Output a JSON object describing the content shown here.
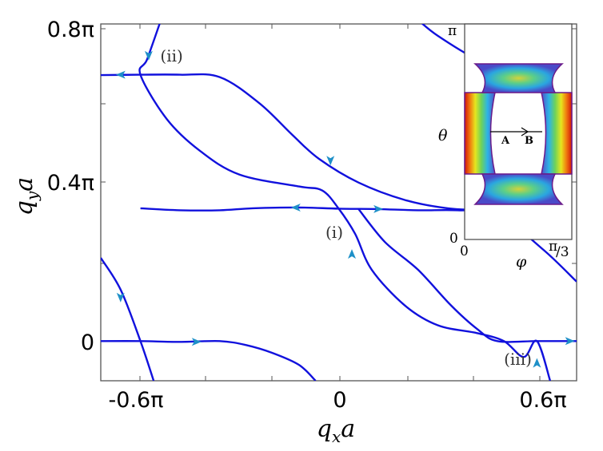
{
  "chart_data": {
    "type": "line",
    "xlabel": "q_x a",
    "ylabel": "q_y a",
    "x_ticks": [
      "-0.6π",
      "0",
      "0.6π"
    ],
    "y_ticks": [
      "0",
      "0.4π",
      "0.8π"
    ],
    "xlim": [
      -0.72,
      0.72
    ],
    "ylim": [
      -0.1,
      0.8
    ],
    "line_color": "#1111dd",
    "arrow_color": "#1e90c8",
    "series": [
      {
        "points": [
          [
            -0.72,
            0.671
          ],
          [
            -0.6,
            0.672
          ],
          [
            -0.48,
            0.672
          ],
          [
            -0.36,
            0.666
          ],
          [
            -0.24,
            0.6
          ],
          [
            -0.14,
            0.52
          ],
          [
            -0.06,
            0.46
          ],
          [
            0.06,
            0.4
          ],
          [
            0.2,
            0.356
          ],
          [
            0.33,
            0.335
          ],
          [
            0.45,
            0.33
          ],
          [
            0.54,
            0.329
          ],
          [
            0.6,
            0.333
          ]
        ]
      },
      {
        "points": [
          [
            -0.6,
            0.335
          ],
          [
            -0.48,
            0.33
          ],
          [
            -0.36,
            0.33
          ],
          [
            -0.26,
            0.335
          ],
          [
            -0.12,
            0.337
          ],
          [
            0.0,
            0.334
          ],
          [
            0.12,
            0.333
          ],
          [
            0.24,
            0.33
          ],
          [
            0.36,
            0.33
          ],
          [
            0.48,
            0.32
          ],
          [
            0.62,
            0.23
          ],
          [
            0.72,
            0.15
          ]
        ]
      },
      {
        "points": [
          [
            -0.72,
            0.0
          ],
          [
            -0.6,
            0.0
          ],
          [
            -0.48,
            -0.002
          ],
          [
            -0.36,
            0.0
          ],
          [
            -0.28,
            -0.01
          ],
          [
            -0.2,
            -0.03
          ],
          [
            -0.12,
            -0.06
          ],
          [
            -0.07,
            -0.1
          ]
        ]
      },
      {
        "points": [
          [
            0.06,
            0.333
          ],
          [
            0.14,
            0.25
          ],
          [
            0.24,
            0.18
          ],
          [
            0.34,
            0.09
          ],
          [
            0.42,
            0.03
          ],
          [
            0.48,
            0.0
          ],
          [
            0.6,
            0.0
          ],
          [
            0.72,
            0.0
          ]
        ]
      },
      {
        "points": [
          [
            -0.54,
            0.805
          ],
          [
            -0.58,
            0.71
          ],
          [
            -0.6,
            0.672
          ],
          [
            -0.52,
            0.56
          ],
          [
            -0.42,
            0.48
          ],
          [
            -0.3,
            0.42
          ],
          [
            -0.12,
            0.39
          ],
          [
            -0.05,
            0.38
          ],
          [
            0.0,
            0.334
          ],
          [
            0.05,
            0.27
          ],
          [
            0.1,
            0.18
          ],
          [
            0.2,
            0.09
          ],
          [
            0.3,
            0.04
          ],
          [
            0.42,
            0.02
          ],
          [
            0.5,
            0.0
          ],
          [
            0.56,
            -0.04
          ],
          [
            0.6,
            0.0
          ],
          [
            0.64,
            -0.1
          ]
        ]
      },
      {
        "points": [
          [
            -0.72,
            0.21
          ],
          [
            -0.66,
            0.13
          ],
          [
            -0.6,
            0.0
          ],
          [
            -0.56,
            -0.1
          ]
        ]
      },
      {
        "points": [
          [
            0.24,
            0.81
          ],
          [
            0.3,
            0.77
          ],
          [
            0.42,
            0.71
          ],
          [
            0.5,
            0.69
          ],
          [
            0.6,
            0.685
          ],
          [
            0.66,
            0.68
          ]
        ]
      }
    ],
    "arrows": [
      {
        "x": -0.575,
        "y": 0.72,
        "dir": "down"
      },
      {
        "x": -0.66,
        "y": 0.672,
        "dir": "left"
      },
      {
        "x": -0.025,
        "y": 0.455,
        "dir": "down"
      },
      {
        "x": -0.13,
        "y": 0.337,
        "dir": "left"
      },
      {
        "x": 0.12,
        "y": 0.333,
        "dir": "right"
      },
      {
        "x": 0.04,
        "y": 0.22,
        "dir": "up"
      },
      {
        "x": -0.66,
        "y": 0.11,
        "dir": "down"
      },
      {
        "x": -0.43,
        "y": -0.002,
        "dir": "right"
      },
      {
        "x": 0.6,
        "y": -0.055,
        "dir": "up"
      },
      {
        "x": 0.7,
        "y": 0.0,
        "dir": "right"
      }
    ],
    "annotations": [
      {
        "text": "(i)",
        "x": -0.04,
        "y": 0.26
      },
      {
        "text": "(ii)",
        "x": -0.54,
        "y": 0.705
      },
      {
        "text": "(iii)",
        "x": 0.5,
        "y": -0.06
      }
    ]
  },
  "inset": {
    "theta_top": "π",
    "theta_bottom": "0",
    "phi_left": "0",
    "phi_right_num": "π",
    "phi_right_den": "/3",
    "theta_label": "θ",
    "phi_label": "φ",
    "label_a": "A",
    "label_b": "B"
  }
}
